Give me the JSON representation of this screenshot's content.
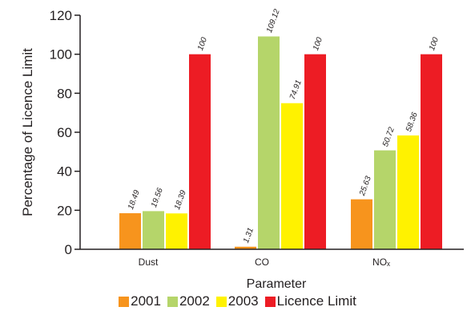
{
  "chart_data": {
    "type": "bar",
    "categories": [
      "Dust",
      "CO",
      "NOₓ"
    ],
    "series": [
      {
        "name": "2001",
        "color": "#f7941d",
        "values": [
          18.49,
          1.31,
          25.63
        ],
        "labels": [
          "18.49",
          "1.31",
          "25.63"
        ]
      },
      {
        "name": "2002",
        "color": "#b5d56a",
        "values": [
          19.56,
          109.12,
          50.72
        ],
        "labels": [
          "19.56",
          "109.12",
          "50.72"
        ]
      },
      {
        "name": "2003",
        "color": "#fff200",
        "values": [
          18.39,
          74.91,
          58.36
        ],
        "labels": [
          "18.39",
          "74.91",
          "58.36"
        ]
      },
      {
        "name": "Licence Limit",
        "color": "#ed1c24",
        "values": [
          100,
          100,
          100
        ],
        "labels": [
          "100",
          "100",
          "100"
        ]
      }
    ],
    "xlabel": "Parameter",
    "ylabel": "Percentage of Licence Limit",
    "ylim": [
      0,
      120
    ],
    "yticks": [
      "0",
      "20",
      "40",
      "60",
      "80",
      "100",
      "120"
    ],
    "grid": false,
    "legend": "bottom"
  }
}
